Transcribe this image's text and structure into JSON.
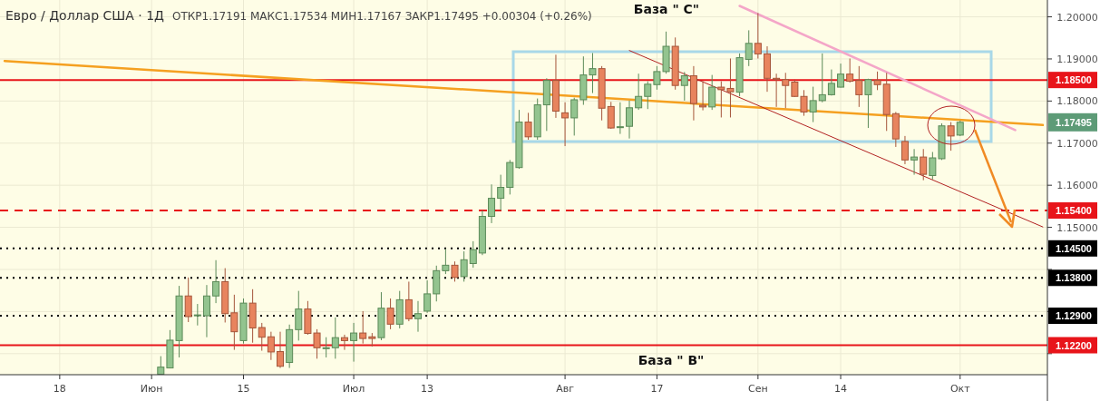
{
  "chart_data": {
    "type": "candlestick",
    "title": "Евро / Доллар США · 1Д",
    "subtitle": "ОТКР1.17191 МАКС1.17534 МИН1.17167 ЗАКР1.17495 +0.00304 (+0.26%)",
    "categories": [
      null,
      null,
      null,
      null,
      null,
      null,
      "18",
      null,
      null,
      null,
      null,
      null,
      null,
      null,
      null,
      null,
      "Июн",
      null,
      null,
      null,
      null,
      null,
      null,
      null,
      null,
      null,
      "15",
      null,
      null,
      null,
      null,
      null,
      null,
      null,
      null,
      null,
      null,
      null,
      "Июл",
      null,
      null,
      null,
      null,
      null,
      null,
      null,
      "13",
      null,
      null,
      null,
      null,
      null,
      null,
      null,
      null,
      null,
      null,
      null,
      null,
      null,
      null,
      "Авг",
      null,
      null,
      null,
      null,
      null,
      null,
      null,
      null,
      null,
      "17",
      null,
      null,
      null,
      null,
      null,
      null,
      null,
      null,
      null,
      null,
      "Сен",
      null,
      null,
      null,
      null,
      null,
      null,
      null,
      null,
      "14",
      null,
      null,
      null,
      null,
      null,
      null,
      null,
      null,
      null,
      null,
      null,
      null,
      "Окт",
      null,
      null,
      null,
      null,
      null,
      null,
      null,
      null,
      null
    ],
    "ohlc": [
      null,
      null,
      null,
      null,
      null,
      null,
      null,
      null,
      null,
      null,
      null,
      null,
      null,
      null,
      null,
      null,
      null,
      [
        1.1151,
        1.1194,
        1.1151,
        1.1168
      ],
      [
        1.1166,
        1.1256,
        1.1165,
        1.1232
      ],
      [
        1.1231,
        1.1361,
        1.1191,
        1.1337
      ],
      [
        1.1337,
        1.1381,
        1.1275,
        1.1288
      ],
      [
        1.1291,
        1.1318,
        1.1267,
        1.1292
      ],
      [
        1.129,
        1.1363,
        1.1239,
        1.1337
      ],
      [
        1.1337,
        1.1422,
        1.132,
        1.1371
      ],
      [
        1.1371,
        1.1403,
        1.1274,
        1.1295
      ],
      [
        1.1297,
        1.134,
        1.1209,
        1.1252
      ],
      [
        1.1231,
        1.1331,
        1.1224,
        1.132
      ],
      [
        1.132,
        1.1353,
        1.1226,
        1.1261
      ],
      [
        1.1262,
        1.1273,
        1.1207,
        1.1239
      ],
      [
        1.124,
        1.1252,
        1.1185,
        1.1204
      ],
      [
        1.1205,
        1.1252,
        1.1166,
        1.117
      ],
      [
        1.1179,
        1.1269,
        1.1166,
        1.1257
      ],
      [
        1.1257,
        1.1349,
        1.1231,
        1.1306
      ],
      [
        1.1306,
        1.1325,
        1.1245,
        1.1248
      ],
      [
        1.1249,
        1.1258,
        1.1188,
        1.1214
      ],
      [
        1.1214,
        1.1239,
        1.1191,
        1.1214
      ],
      [
        1.1214,
        1.1286,
        1.1188,
        1.1238
      ],
      [
        1.1238,
        1.1245,
        1.1209,
        1.1231
      ],
      [
        1.1231,
        1.1273,
        1.1181,
        1.1249
      ],
      [
        1.1249,
        1.1301,
        1.1224,
        1.1236
      ],
      [
        1.124,
        1.1249,
        1.1217,
        1.1236
      ],
      [
        1.1238,
        1.1346,
        1.1232,
        1.1308
      ],
      [
        1.1308,
        1.1331,
        1.1258,
        1.127
      ],
      [
        1.127,
        1.1349,
        1.126,
        1.1328
      ],
      [
        1.1328,
        1.1371,
        1.1277,
        1.1283
      ],
      [
        1.1283,
        1.1325,
        1.1252,
        1.1295
      ],
      [
        1.1301,
        1.1374,
        1.1297,
        1.1342
      ],
      [
        1.1342,
        1.1409,
        1.1324,
        1.1397
      ],
      [
        1.1397,
        1.1449,
        1.1389,
        1.141
      ],
      [
        1.141,
        1.1419,
        1.1371,
        1.1381
      ],
      [
        1.1383,
        1.1443,
        1.1371,
        1.1423
      ],
      [
        1.1414,
        1.1467,
        1.1404,
        1.1447
      ],
      [
        1.1439,
        1.154,
        1.1434,
        1.1526
      ],
      [
        1.1526,
        1.1602,
        1.151,
        1.1569
      ],
      [
        1.1569,
        1.1625,
        1.154,
        1.1595
      ],
      [
        1.1595,
        1.166,
        1.1578,
        1.1654
      ],
      [
        1.1642,
        1.1779,
        1.1639,
        1.175
      ],
      [
        1.175,
        1.1772,
        1.1708,
        1.1715
      ],
      [
        1.1715,
        1.1806,
        1.1708,
        1.1791
      ],
      [
        1.1791,
        1.1854,
        1.1729,
        1.1849
      ],
      [
        1.1849,
        1.191,
        1.176,
        1.1776
      ],
      [
        1.1772,
        1.1797,
        1.1693,
        1.176
      ],
      [
        1.176,
        1.1808,
        1.1718,
        1.1803
      ],
      [
        1.1803,
        1.1906,
        1.1791,
        1.1862
      ],
      [
        1.1862,
        1.1914,
        1.1819,
        1.1877
      ],
      [
        1.1877,
        1.1883,
        1.1754,
        1.1783
      ],
      [
        1.1787,
        1.1798,
        1.1734,
        1.1736
      ],
      [
        1.1738,
        1.1797,
        1.1722,
        1.1739
      ],
      [
        1.174,
        1.1801,
        1.1711,
        1.1784
      ],
      [
        1.1784,
        1.1865,
        1.1779,
        1.1811
      ],
      [
        1.1811,
        1.1847,
        1.1781,
        1.184
      ],
      [
        1.1839,
        1.1883,
        1.1827,
        1.187
      ],
      [
        1.187,
        1.1965,
        1.1865,
        1.193
      ],
      [
        1.193,
        1.1951,
        1.1827,
        1.1837
      ],
      [
        1.1837,
        1.1869,
        1.1801,
        1.186
      ],
      [
        1.186,
        1.1883,
        1.1754,
        1.1794
      ],
      [
        1.179,
        1.1847,
        1.1778,
        1.1786
      ],
      [
        1.1786,
        1.1862,
        1.1779,
        1.1833
      ],
      [
        1.1833,
        1.1847,
        1.1761,
        1.1827
      ],
      [
        1.183,
        1.1901,
        1.1761,
        1.1822
      ],
      [
        1.1821,
        1.1913,
        1.1811,
        1.1903
      ],
      [
        1.1899,
        1.1968,
        1.1883,
        1.1937
      ],
      [
        1.1937,
        1.2009,
        1.1901,
        1.1912
      ],
      [
        1.1912,
        1.193,
        1.1822,
        1.1854
      ],
      [
        1.1854,
        1.1865,
        1.1786,
        1.1851
      ],
      [
        1.1851,
        1.1867,
        1.1783,
        1.1837
      ],
      [
        1.1845,
        1.1851,
        1.181,
        1.1811
      ],
      [
        1.1811,
        1.1826,
        1.1765,
        1.1774
      ],
      [
        1.1774,
        1.1834,
        1.175,
        1.1801
      ],
      [
        1.1801,
        1.1913,
        1.1797,
        1.1815
      ],
      [
        1.1815,
        1.1875,
        1.1813,
        1.1842
      ],
      [
        1.1833,
        1.1889,
        1.1832,
        1.1864
      ],
      [
        1.1864,
        1.1901,
        1.1844,
        1.1847
      ],
      [
        1.1849,
        1.1883,
        1.1786,
        1.1815
      ],
      [
        1.1815,
        1.1853,
        1.1736,
        1.1851
      ],
      [
        1.1849,
        1.187,
        1.1826,
        1.1839
      ],
      [
        1.184,
        1.1867,
        1.1729,
        1.1768
      ],
      [
        1.177,
        1.1774,
        1.1691,
        1.171
      ],
      [
        1.1704,
        1.1717,
        1.165,
        1.166
      ],
      [
        1.166,
        1.1686,
        1.1625,
        1.1667
      ],
      [
        1.1667,
        1.1686,
        1.1612,
        1.1626
      ],
      [
        1.1623,
        1.1679,
        1.1614,
        1.1665
      ],
      [
        1.1663,
        1.1747,
        1.166,
        1.1741
      ],
      [
        1.1741,
        1.175,
        1.1682,
        1.1717
      ],
      [
        1.17191,
        1.17534,
        1.17167,
        1.17495
      ],
      null,
      null,
      null,
      null,
      null,
      null,
      null,
      null,
      null
    ],
    "series": [
      {
        "type": "line",
        "color": "#f5a020",
        "values": [
          1.1895,
          null,
          null,
          null,
          null,
          null,
          null,
          null,
          null,
          null,
          null,
          null,
          null,
          null,
          null,
          null,
          null,
          null,
          null,
          null,
          null,
          null,
          null,
          null,
          null,
          null,
          null,
          null,
          null,
          null,
          null,
          null,
          null,
          null,
          null,
          null,
          null,
          null,
          null,
          null,
          null,
          null,
          null,
          null,
          null,
          null,
          null,
          null,
          null,
          null,
          null,
          null,
          null,
          null,
          null,
          null,
          null,
          null,
          null,
          null,
          null,
          null,
          null,
          null,
          null,
          null,
          null,
          null,
          null,
          null,
          null,
          null,
          null,
          null,
          null,
          null,
          null,
          null,
          null,
          null,
          null,
          null,
          null,
          null,
          null,
          null,
          null,
          null,
          null,
          null,
          null,
          null,
          null,
          null,
          null,
          null,
          null,
          null,
          null,
          null,
          null,
          null,
          null,
          null,
          null,
          null,
          null,
          null,
          null,
          null,
          null,
          null,
          null,
          1.1743
        ]
      },
      {
        "type": "line",
        "color": "#f4a6c8",
        "values": [
          null,
          null,
          null,
          null,
          null,
          null,
          null,
          null,
          null,
          null,
          null,
          null,
          null,
          null,
          null,
          null,
          null,
          null,
          null,
          null,
          null,
          null,
          null,
          null,
          null,
          null,
          null,
          null,
          null,
          null,
          null,
          null,
          null,
          null,
          null,
          null,
          null,
          null,
          null,
          null,
          null,
          null,
          null,
          null,
          null,
          null,
          null,
          null,
          null,
          null,
          null,
          null,
          null,
          null,
          null,
          null,
          null,
          null,
          null,
          null,
          null,
          null,
          null,
          null,
          null,
          null,
          null,
          null,
          null,
          null,
          null,
          null,
          null,
          null,
          null,
          null,
          null,
          null,
          null,
          null,
          1.2026,
          null,
          null,
          null,
          null,
          null,
          null,
          null,
          null,
          null,
          null,
          null,
          null,
          null,
          null,
          null,
          null,
          null,
          null,
          null,
          null,
          null,
          null,
          null,
          null,
          null,
          null,
          null,
          null,
          null,
          1.1731,
          null,
          null,
          null
        ]
      },
      {
        "type": "line",
        "color": "#b22222",
        "values": [
          null,
          null,
          null,
          null,
          null,
          null,
          null,
          null,
          null,
          null,
          null,
          null,
          null,
          null,
          null,
          null,
          null,
          null,
          null,
          null,
          null,
          null,
          null,
          null,
          null,
          null,
          null,
          null,
          null,
          null,
          null,
          null,
          null,
          null,
          null,
          null,
          null,
          null,
          null,
          null,
          null,
          null,
          null,
          null,
          null,
          null,
          null,
          null,
          null,
          null,
          null,
          null,
          null,
          null,
          null,
          null,
          null,
          null,
          null,
          null,
          null,
          null,
          null,
          null,
          null,
          null,
          null,
          null,
          1.192,
          null,
          null,
          null,
          null,
          null,
          null,
          null,
          null,
          null,
          null,
          null,
          null,
          null,
          null,
          null,
          null,
          null,
          null,
          null,
          null,
          null,
          null,
          null,
          null,
          null,
          null,
          null,
          null,
          null,
          null,
          null,
          null,
          null,
          null,
          null,
          null,
          null,
          null,
          null,
          null,
          null,
          null,
          null,
          null,
          1.1501
        ]
      }
    ],
    "ylim": [
      1.115,
      1.204
    ],
    "yticks": [
      {
        "value": 1.12,
        "label": null
      },
      {
        "value": 1.13,
        "label": null
      },
      {
        "value": 1.14,
        "label": null
      },
      {
        "value": 1.15,
        "label": "1.15000"
      },
      {
        "value": 1.16,
        "label": "1.16000"
      },
      {
        "value": 1.17,
        "label": "1.17000"
      },
      {
        "value": 1.18,
        "label": "1.18000"
      },
      {
        "value": 1.19,
        "label": "1.19000"
      },
      {
        "value": 1.2,
        "label": "1.20000"
      }
    ],
    "grid": true,
    "ref_lines": [
      {
        "axis": "y",
        "value": 1.185,
        "label": "1.18500",
        "color": "#e8141a",
        "line_style": "solid"
      },
      {
        "axis": "y",
        "value": 1.154,
        "label": "1.15400",
        "color": "#e8141a",
        "line_style": "dashed"
      },
      {
        "axis": "y",
        "value": 1.145,
        "label": "1.14500",
        "color": "#000000",
        "line_style": "dotted"
      },
      {
        "axis": "y",
        "value": 1.138,
        "label": "1.13800",
        "color": "#000000",
        "line_style": "dotted"
      },
      {
        "axis": "y",
        "value": 1.129,
        "label": "1.12900",
        "color": "#000000",
        "line_style": "dotted"
      },
      {
        "axis": "y",
        "value": 1.122,
        "label": "1.12200",
        "color": "#e8141a",
        "line_style": "solid"
      }
    ],
    "annotations": [
      "База \" С\"",
      "База \" В\"",
      "1.17495"
    ]
  }
}
